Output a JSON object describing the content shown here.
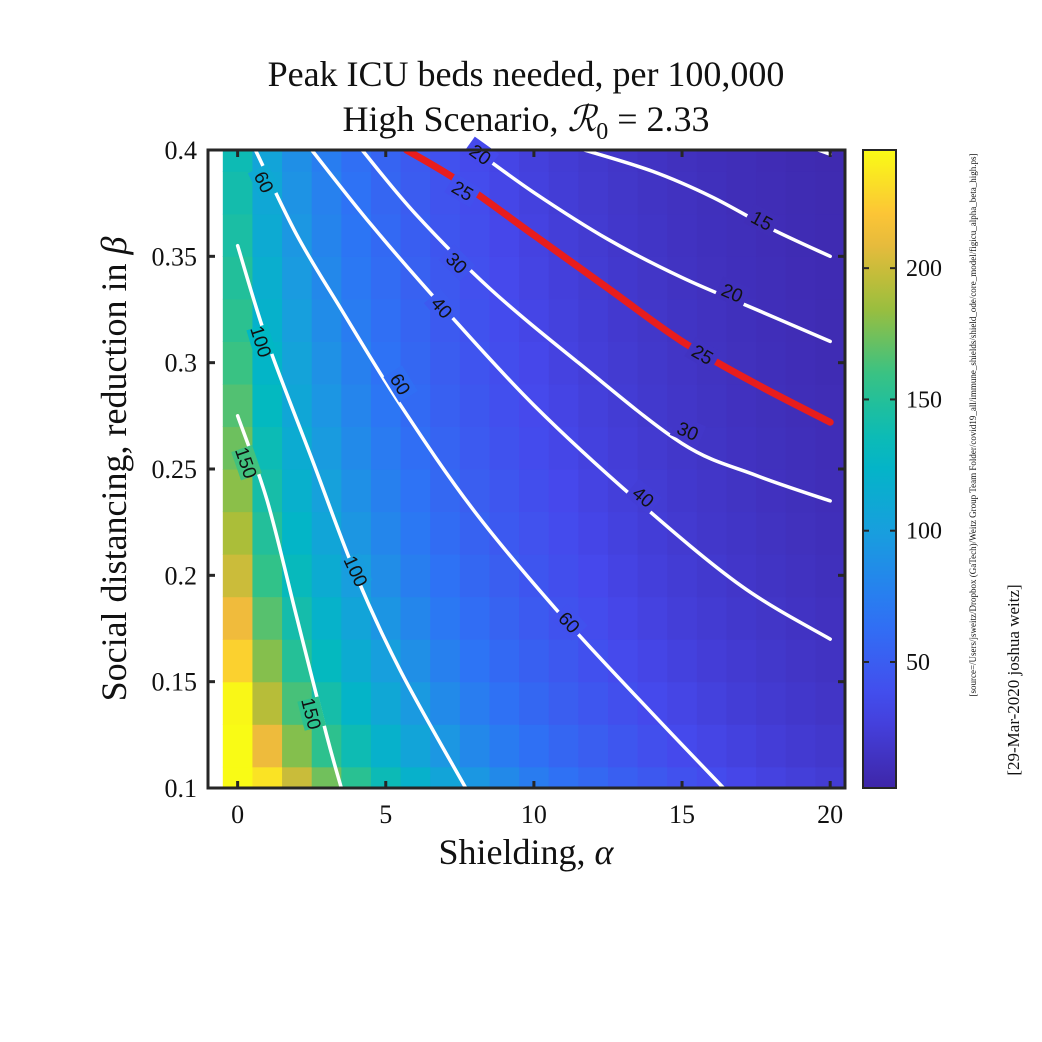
{
  "chart_data": {
    "type": "heatmap",
    "title_line1": "Peak ICU beds needed, per 100,000",
    "title_line2_prefix": "High Scenario, ",
    "title_r0_symbol": "ℛ",
    "title_r0_sub": "0",
    "title_r0_value": " = 2.33",
    "xlabel_text": "Shielding, ",
    "xlabel_symbol": "α",
    "ylabel_text": "Social distancing, reduction in ",
    "ylabel_symbol": "β",
    "xlim": [
      -1,
      20.5
    ],
    "ylim": [
      0.1,
      0.4
    ],
    "xticks": [
      {
        "value": 0,
        "label": "0"
      },
      {
        "value": 5,
        "label": "5"
      },
      {
        "value": 10,
        "label": "10"
      },
      {
        "value": 15,
        "label": "15"
      },
      {
        "value": 20,
        "label": "20"
      }
    ],
    "yticks": [
      {
        "value": 0.1,
        "label": "0.1"
      },
      {
        "value": 0.15,
        "label": "0.15"
      },
      {
        "value": 0.2,
        "label": "0.2"
      },
      {
        "value": 0.25,
        "label": "0.25"
      },
      {
        "value": 0.3,
        "label": "0.3"
      },
      {
        "value": 0.35,
        "label": "0.35"
      },
      {
        "value": 0.4,
        "label": "0.4"
      }
    ],
    "grid": false,
    "colormap": "parula",
    "colorbar": {
      "range": [
        2,
        245
      ],
      "ticks": [
        {
          "value": 50,
          "label": "50"
        },
        {
          "value": 100,
          "label": "100"
        },
        {
          "value": 150,
          "label": "150"
        },
        {
          "value": 200,
          "label": "200"
        }
      ]
    },
    "contours": [
      {
        "level": 150,
        "label": "150",
        "color": "#ffffff",
        "points": [
          [
            0,
            0.275
          ],
          [
            1,
            0.235
          ],
          [
            2,
            0.18
          ],
          [
            3,
            0.125
          ],
          [
            3.5,
            0.1
          ]
        ],
        "labels_at": [
          [
            0.3,
            0.253
          ],
          [
            2.5,
            0.135
          ]
        ]
      },
      {
        "level": 100,
        "label": "100",
        "color": "#ffffff",
        "points": [
          [
            0,
            0.355
          ],
          [
            1,
            0.31
          ],
          [
            2.5,
            0.255
          ],
          [
            4,
            0.2
          ],
          [
            5.5,
            0.155
          ],
          [
            7.7,
            0.1
          ]
        ],
        "labels_at": [
          [
            0.8,
            0.31
          ],
          [
            4,
            0.202
          ]
        ]
      },
      {
        "level": 60,
        "label": "60",
        "color": "#ffffff",
        "points": [
          [
            0.6,
            0.4
          ],
          [
            2,
            0.36
          ],
          [
            3.5,
            0.325
          ],
          [
            5.5,
            0.28
          ],
          [
            8,
            0.23
          ],
          [
            11,
            0.18
          ],
          [
            14,
            0.135
          ],
          [
            16.4,
            0.1
          ]
        ],
        "labels_at": [
          [
            0.9,
            0.385
          ],
          [
            5.5,
            0.29
          ],
          [
            11.2,
            0.178
          ]
        ]
      },
      {
        "level": 40,
        "label": "40",
        "color": "#ffffff",
        "points": [
          [
            2.5,
            0.4
          ],
          [
            4.5,
            0.365
          ],
          [
            7,
            0.325
          ],
          [
            10,
            0.28
          ],
          [
            13.5,
            0.235
          ],
          [
            17,
            0.195
          ],
          [
            20,
            0.17
          ]
        ],
        "labels_at": [
          [
            6.9,
            0.326
          ],
          [
            13.7,
            0.237
          ]
        ]
      },
      {
        "level": 30,
        "label": "30",
        "color": "#ffffff",
        "points": [
          [
            4.2,
            0.4
          ],
          [
            6,
            0.37
          ],
          [
            8.5,
            0.335
          ],
          [
            11.5,
            0.3
          ],
          [
            15,
            0.262
          ],
          [
            17.5,
            0.247
          ],
          [
            20,
            0.235
          ]
        ],
        "labels_at": [
          [
            7.4,
            0.347
          ],
          [
            15.2,
            0.268
          ]
        ]
      },
      {
        "level": 25,
        "label": "25",
        "color": "#e81d1d",
        "emphasis": true,
        "points": [
          [
            5.7,
            0.4
          ],
          [
            7.5,
            0.385
          ],
          [
            10,
            0.36
          ],
          [
            12.5,
            0.335
          ],
          [
            15,
            0.31
          ],
          [
            17.5,
            0.29
          ],
          [
            20,
            0.272
          ]
        ],
        "labels_at": [
          [
            7.6,
            0.381
          ],
          [
            15.7,
            0.304
          ]
        ]
      },
      {
        "level": 20,
        "label": "20",
        "color": "#ffffff",
        "points": [
          [
            8,
            0.4
          ],
          [
            10,
            0.38
          ],
          [
            12.5,
            0.358
          ],
          [
            15,
            0.34
          ],
          [
            17.5,
            0.325
          ],
          [
            20,
            0.31
          ]
        ],
        "labels_at": [
          [
            8.2,
            0.398
          ],
          [
            16.7,
            0.333
          ]
        ]
      },
      {
        "level": 15,
        "label": "15",
        "color": "#ffffff",
        "points": [
          [
            11.7,
            0.4
          ],
          [
            14,
            0.39
          ],
          [
            16,
            0.378
          ],
          [
            18,
            0.363
          ],
          [
            20,
            0.35
          ]
        ],
        "labels_at": [
          [
            17.7,
            0.367
          ]
        ]
      },
      {
        "level": 10,
        "label": "",
        "color": "#ffffff",
        "points": [
          [
            19.6,
            0.4
          ],
          [
            20,
            0.398
          ]
        ],
        "labels_at": []
      }
    ]
  },
  "side_note_source": "[source=/Users/jsweitz/Dropbox (GaTech)/Weitz Group Team Folder/covid19_all/immune_shields/shield_ode/core_model/figicu_alpha_beta_high.ps]",
  "side_note_author": "[29-Mar-2020 joshua weitz]"
}
